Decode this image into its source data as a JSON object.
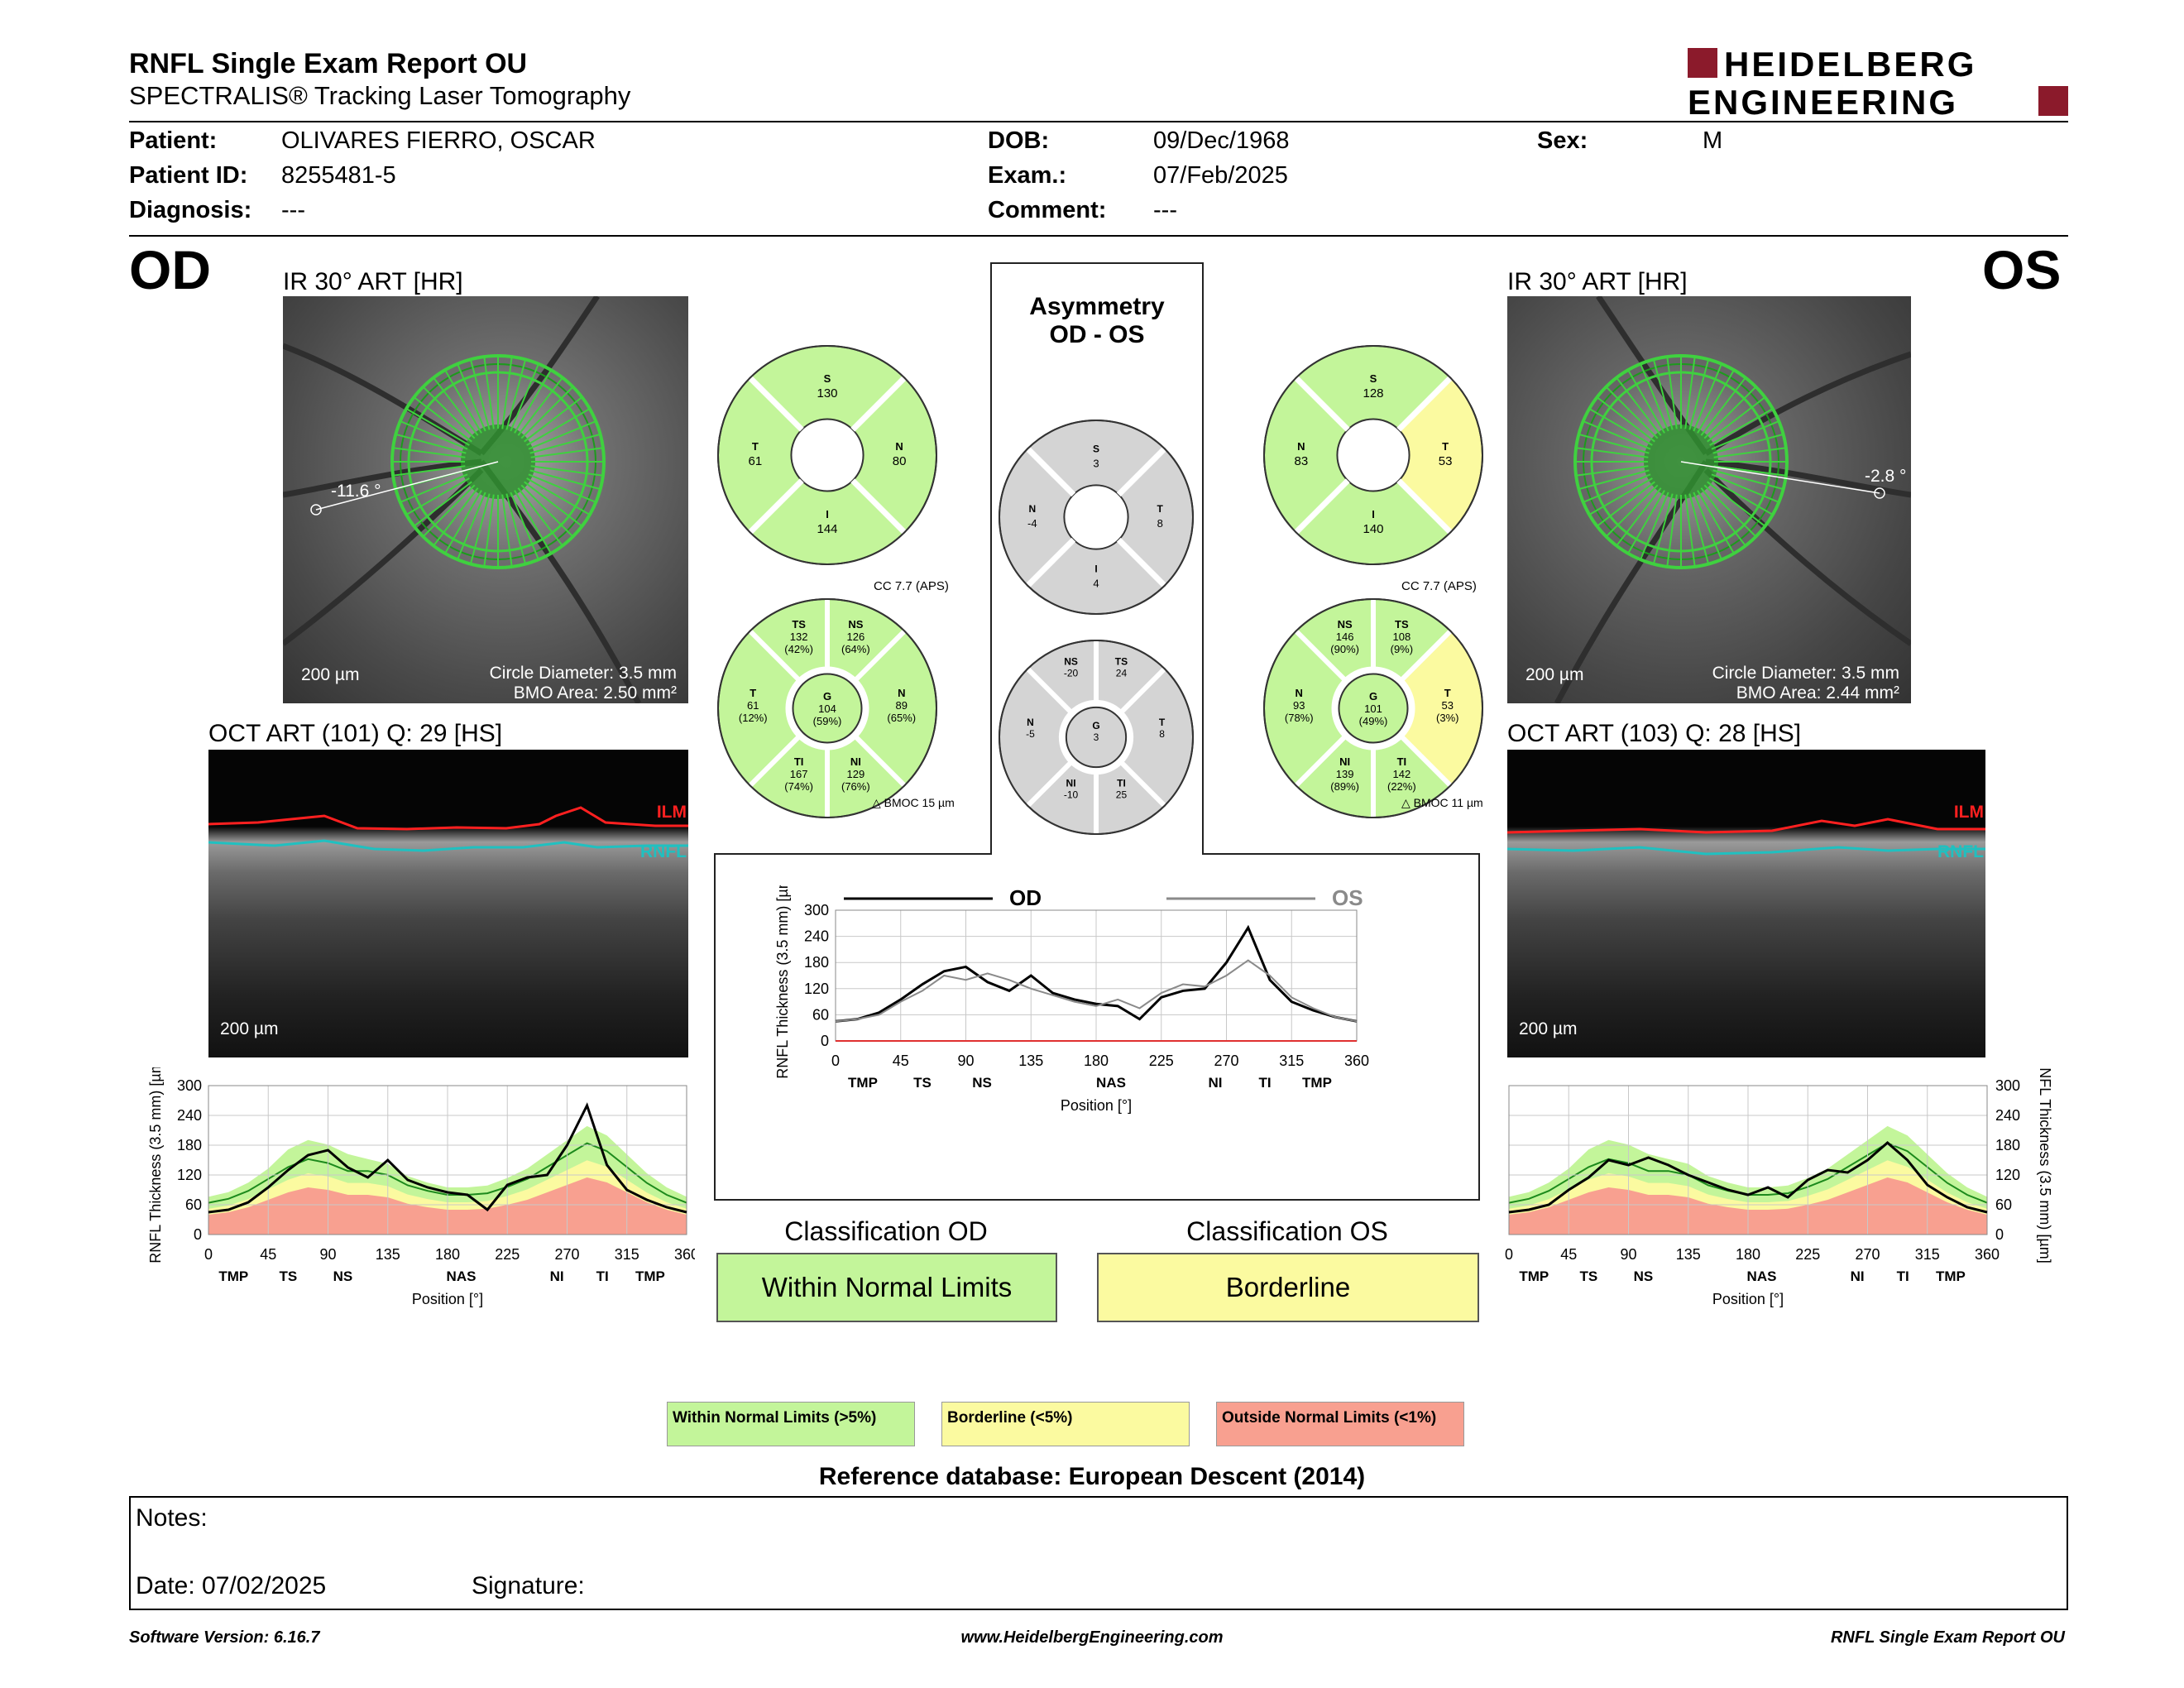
{
  "header": {
    "title": "RNFL Single Exam Report OU",
    "subtitle": "SPECTRALIS® Tracking Laser Tomography",
    "logo_line1": "HEIDELBERG",
    "logo_line2": "ENGINEERING",
    "brand_color": "#8b1a2b"
  },
  "patient": {
    "patient_label": "Patient:",
    "patient_value": "OLIVARES FIERRO, OSCAR",
    "id_label": "Patient ID:",
    "id_value": "8255481-5",
    "diagnosis_label": "Diagnosis:",
    "diagnosis_value": "---",
    "dob_label": "DOB:",
    "dob_value": "09/Dec/1968",
    "exam_label": "Exam.:",
    "exam_value": "07/Feb/2025",
    "comment_label": "Comment:",
    "comment_value": "---",
    "sex_label": "Sex:",
    "sex_value": "M"
  },
  "od": {
    "eye": "OD",
    "ir_caption": "IR 30° ART [HR]",
    "angle": "-11.6 °",
    "scale": "200 µm",
    "circle_diameter": "Circle Diameter: 3.5 mm",
    "bmo_area": "BMO Area: 2.50 mm²",
    "oct_caption": "OCT ART (101) Q: 29 [HS]",
    "oct_scale": "200 µm",
    "ilm": "ILM",
    "rnfl": "RNFL",
    "sectors4": {
      "S": "130",
      "T": "61",
      "N": "80",
      "I": "144"
    },
    "cc": "CC 7.7 (APS)",
    "bmoc": "BMOC 15 µm",
    "sectors6": {
      "TS": [
        "TS",
        "132",
        "(42%)"
      ],
      "NS": [
        "NS",
        "126",
        "(64%)"
      ],
      "T": [
        "T",
        "61",
        "(12%)"
      ],
      "G": [
        "G",
        "104",
        "(59%)"
      ],
      "N": [
        "N",
        "89",
        "(65%)"
      ],
      "TI": [
        "TI",
        "167",
        "(74%)"
      ],
      "NI": [
        "NI",
        "129",
        "(76%)"
      ]
    },
    "classification_label": "Classification OD",
    "classification": "Within Normal Limits"
  },
  "os": {
    "eye": "OS",
    "ir_caption": "IR 30° ART [HR]",
    "angle": "-2.8 °",
    "scale": "200 µm",
    "circle_diameter": "Circle Diameter: 3.5 mm",
    "bmo_area": "BMO Area: 2.44 mm²",
    "oct_caption": "OCT ART (103) Q: 28 [HS]",
    "oct_scale": "200 µm",
    "ilm": "ILM",
    "rnfl": "RNFL",
    "sectors4": {
      "S": "128",
      "N": "83",
      "T": "53",
      "I": "140"
    },
    "cc": "CC 7.7 (APS)",
    "bmoc": "BMOC 11 µm",
    "sectors6": {
      "NS": [
        "NS",
        "146",
        "(90%)"
      ],
      "TS": [
        "TS",
        "108",
        "(9%)"
      ],
      "N": [
        "N",
        "93",
        "(78%)"
      ],
      "G": [
        "G",
        "101",
        "(49%)"
      ],
      "T": [
        "T",
        "53",
        "(3%)"
      ],
      "NI": [
        "NI",
        "139",
        "(89%)"
      ],
      "TI": [
        "TI",
        "142",
        "(22%)"
      ]
    },
    "classification_label": "Classification OS",
    "classification": "Borderline"
  },
  "asymmetry": {
    "title1": "Asymmetry",
    "title2": "OD - OS",
    "sectors4": {
      "S": [
        "S",
        "3"
      ],
      "N": [
        "N",
        "-4"
      ],
      "T": [
        "T",
        "8"
      ],
      "I": [
        "I",
        "4"
      ]
    },
    "sectors6": {
      "NS": [
        "NS",
        "-20"
      ],
      "TS": [
        "TS",
        "24"
      ],
      "N": [
        "N",
        "-5"
      ],
      "G": [
        "G",
        "3"
      ],
      "T": [
        "T",
        "8"
      ],
      "NI": [
        "NI",
        "-10"
      ],
      "TI": [
        "TI",
        "25"
      ]
    }
  },
  "colors": {
    "normal": "#c3f59a",
    "border": "#fbfaa0",
    "outside": "#f8a090",
    "gray": "#d4d4d4",
    "od_line": "#000000",
    "os_line": "#8a8a8a"
  },
  "chart_common": {
    "ylabel": "RNFL Thickness (3.5 mm) [µm]",
    "xlabel": "Position [°]",
    "yticks": [
      "0",
      "60",
      "120",
      "180",
      "240",
      "300"
    ],
    "xticks": [
      "0",
      "45",
      "90",
      "135",
      "180",
      "225",
      "270",
      "315",
      "360"
    ],
    "sector_labels": [
      "TMP",
      "TS",
      "NS",
      "NAS",
      "NI",
      "TI",
      "TMP"
    ],
    "legend_od": "OD",
    "legend_os": "OS"
  },
  "chart_data": [
    {
      "type": "line",
      "title": "",
      "xlabel": "Position [°]",
      "ylabel": "RNFL Thickness (3.5 mm) [µm]",
      "xlim": [
        0,
        360
      ],
      "ylim": [
        0,
        300
      ],
      "series": [
        {
          "name": "",
          "x": [
            0,
            15,
            30,
            45,
            60,
            75,
            90,
            105,
            120,
            135,
            150,
            165,
            180,
            195,
            210,
            225,
            240,
            255,
            270,
            285,
            300,
            315,
            330,
            345,
            360
          ],
          "values": [
            45,
            50,
            65,
            95,
            130,
            160,
            170,
            135,
            115,
            150,
            110,
            95,
            85,
            80,
            50,
            100,
            115,
            120,
            180,
            260,
            140,
            90,
            70,
            55,
            45
          ]
        }
      ],
      "bands": "normal/borderline/outside"
    },
    {
      "type": "line",
      "title": "",
      "xlabel": "Position [°]",
      "ylabel": "RNFL Thickness (3.5 mm) [µm]",
      "xlim": [
        0,
        360
      ],
      "ylim": [
        0,
        300
      ],
      "series": [
        {
          "name": "OD",
          "x": [
            0,
            15,
            30,
            45,
            60,
            75,
            90,
            105,
            120,
            135,
            150,
            165,
            180,
            195,
            210,
            225,
            240,
            255,
            270,
            285,
            300,
            315,
            330,
            345,
            360
          ],
          "values": [
            45,
            50,
            65,
            95,
            130,
            160,
            170,
            135,
            115,
            150,
            110,
            95,
            85,
            80,
            50,
            100,
            115,
            120,
            180,
            260,
            140,
            90,
            70,
            55,
            45
          ]
        },
        {
          "name": "OS",
          "x": [
            0,
            15,
            30,
            45,
            60,
            75,
            90,
            105,
            120,
            135,
            150,
            165,
            180,
            195,
            210,
            225,
            240,
            255,
            270,
            285,
            300,
            315,
            330,
            345,
            360
          ],
          "values": [
            45,
            50,
            60,
            90,
            115,
            150,
            140,
            155,
            140,
            120,
            105,
            90,
            80,
            95,
            75,
            110,
            130,
            125,
            150,
            185,
            150,
            100,
            75,
            55,
            45
          ]
        }
      ]
    },
    {
      "type": "line",
      "title": "",
      "xlabel": "Position [°]",
      "ylabel": "RNFL Thickness (3.5 mm) [µm]",
      "xlim": [
        0,
        360
      ],
      "ylim": [
        0,
        300
      ],
      "series": [
        {
          "name": "",
          "x": [
            0,
            15,
            30,
            45,
            60,
            75,
            90,
            105,
            120,
            135,
            150,
            165,
            180,
            195,
            210,
            225,
            240,
            255,
            270,
            285,
            300,
            315,
            330,
            345,
            360
          ],
          "values": [
            45,
            50,
            60,
            90,
            115,
            150,
            140,
            155,
            140,
            120,
            105,
            90,
            80,
            95,
            75,
            110,
            130,
            125,
            150,
            185,
            150,
            100,
            75,
            55,
            45
          ]
        }
      ],
      "bands": "normal/borderline/outside"
    }
  ],
  "legend": {
    "normal": "Within Normal Limits (>5%)",
    "border": "Borderline (<5%)",
    "outside": "Outside Normal Limits (<1%)"
  },
  "reference_db": "Reference database: European Descent (2014)",
  "notes": {
    "label": "Notes:",
    "date": "Date: 07/02/2025",
    "signature": "Signature:"
  },
  "footer": {
    "version": "Software Version: 6.16.7",
    "website": "www.HeidelbergEngineering.com",
    "report": "RNFL Single Exam Report OU"
  }
}
